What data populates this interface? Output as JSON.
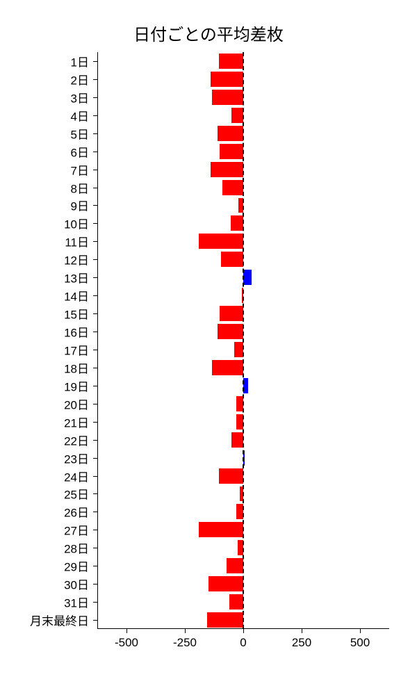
{
  "chart": {
    "type": "bar",
    "orientation": "horizontal",
    "title": "日付ごとの平均差枚",
    "title_fontsize": 24,
    "background_color": "#ffffff",
    "text_color": "#000000",
    "negative_color": "#ff0000",
    "positive_color": "#0000ff",
    "zero_line_color": "#000000",
    "zero_line_style": "dashed",
    "xlim": [
      -625,
      625
    ],
    "xticks": [
      -500,
      -250,
      0,
      250,
      500
    ],
    "xtick_labels": [
      "-500",
      "-250",
      "0",
      "250",
      "500"
    ],
    "label_fontsize": 17,
    "bar_gap": 2,
    "categories": [
      "1日",
      "2日",
      "3日",
      "4日",
      "5日",
      "6日",
      "7日",
      "8日",
      "9日",
      "10日",
      "11日",
      "12日",
      "13日",
      "14日",
      "15日",
      "16日",
      "17日",
      "18日",
      "19日",
      "20日",
      "21日",
      "22日",
      "23日",
      "24日",
      "25日",
      "26日",
      "27日",
      "28日",
      "29日",
      "30日",
      "31日",
      "月末最終日"
    ],
    "values": [
      -105,
      -140,
      -135,
      -50,
      -110,
      -100,
      -140,
      -90,
      -20,
      -55,
      -190,
      -95,
      35,
      -5,
      -100,
      -110,
      -40,
      -135,
      20,
      -30,
      -30,
      -50,
      5,
      -105,
      -15,
      -30,
      -190,
      -25,
      -70,
      -150,
      -60,
      -155
    ]
  }
}
